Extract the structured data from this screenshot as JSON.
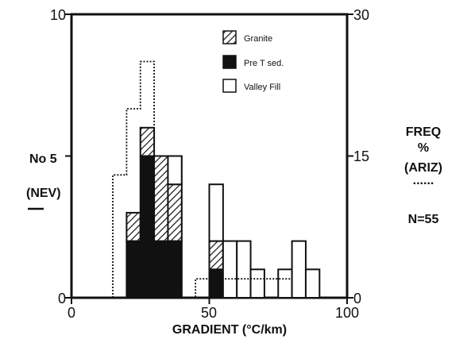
{
  "chart_data": {
    "type": "bar",
    "xlabel": "GRADIENT (°C/km)",
    "xlim": [
      0,
      100
    ],
    "x_ticks": [
      "0",
      "50",
      "100"
    ],
    "left_axis": {
      "label_lines": [
        "No 5",
        "(NEV)"
      ],
      "ylim": [
        0,
        10
      ],
      "ticks": [
        "0",
        "10"
      ]
    },
    "right_axis": {
      "label_lines": [
        "FREQ",
        "%",
        "(ARIZ)",
        "......"
      ],
      "ylim": [
        0,
        30
      ],
      "ticks": [
        "0",
        "15",
        "30"
      ]
    },
    "annotation": "N=55",
    "bin_width": 5,
    "bins_start": [
      15,
      20,
      25,
      30,
      35,
      40,
      45,
      50,
      55,
      60,
      65,
      70,
      75,
      80,
      85
    ],
    "stacks": {
      "bins_start": [
        20,
        25,
        30,
        35,
        40,
        50,
        55,
        60,
        65,
        70,
        75,
        80,
        85
      ],
      "Pre T sed.": [
        2,
        5,
        2,
        2,
        0,
        1,
        0,
        0,
        0,
        0,
        0,
        0,
        0
      ],
      "Granite": [
        1,
        1,
        3,
        2,
        0,
        1,
        0,
        0,
        0,
        0,
        0,
        0,
        0
      ],
      "Valley Fill": [
        0,
        0,
        0,
        1,
        0,
        2,
        2,
        2,
        1,
        0,
        1,
        2,
        1
      ]
    },
    "series": [
      {
        "name": "Granite",
        "pattern": "hatch"
      },
      {
        "name": "Pre T sed.",
        "pattern": "solid"
      },
      {
        "name": "Valley Fill",
        "pattern": "open"
      }
    ],
    "arizona_freq_percent": {
      "bins_start": [
        15,
        20,
        25,
        30,
        35,
        40,
        45,
        50,
        55,
        60,
        65,
        70,
        75,
        80,
        85
      ],
      "values": [
        13,
        20,
        25,
        15,
        15,
        0,
        2,
        2,
        2,
        2,
        2,
        2,
        2,
        0,
        0
      ]
    },
    "grid": false
  },
  "colors": {
    "ink": "#111111",
    "background": "#ffffff"
  }
}
